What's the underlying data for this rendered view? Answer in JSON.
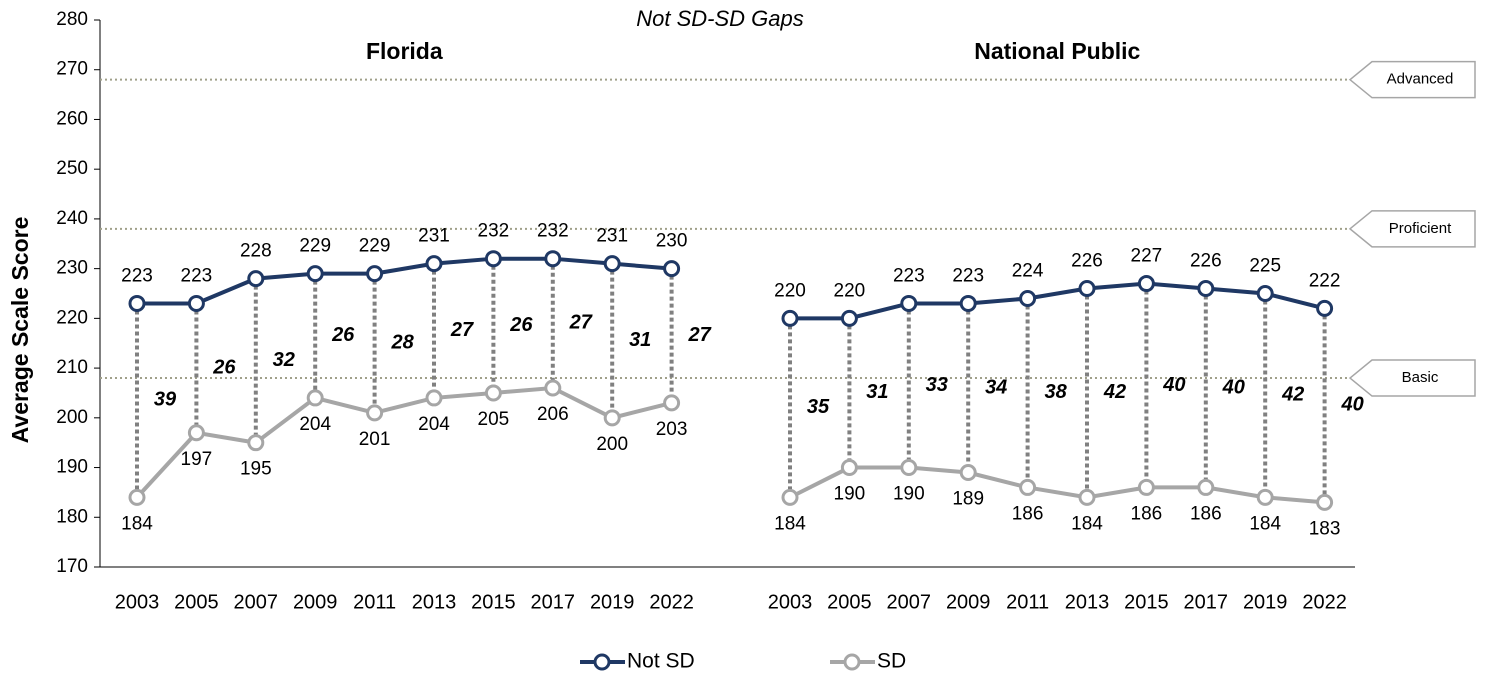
{
  "chart_data": {
    "type": "line",
    "title": "Not SD-SD Gaps",
    "y_label": "Average Scale Score",
    "ylim": [
      170,
      280
    ],
    "yticks": [
      170,
      180,
      190,
      200,
      210,
      220,
      230,
      240,
      250,
      260,
      270,
      280
    ],
    "reference_lines": [
      {
        "value": 268,
        "label": "Advanced"
      },
      {
        "value": 238,
        "label": "Proficient"
      },
      {
        "value": 208,
        "label": "Basic"
      }
    ],
    "legend": [
      {
        "name": "Not SD",
        "color": "#1f3864"
      },
      {
        "name": "SD",
        "color": "#a6a6a6"
      }
    ],
    "panels": [
      {
        "title": "Florida",
        "categories": [
          "2003",
          "2005",
          "2007",
          "2009",
          "2011",
          "2013",
          "2015",
          "2017",
          "2019",
          "2022"
        ],
        "series": [
          {
            "values": [
              223,
              223,
              228,
              229,
              229,
              231,
              232,
              232,
              231,
              230
            ]
          },
          {
            "values": [
              184,
              197,
              195,
              204,
              201,
              204,
              205,
              206,
              200,
              203
            ]
          }
        ],
        "gaps": [
          39,
          26,
          32,
          26,
          28,
          27,
          26,
          27,
          31,
          27
        ]
      },
      {
        "title": "National Public",
        "categories": [
          "2003",
          "2005",
          "2007",
          "2009",
          "2011",
          "2013",
          "2015",
          "2017",
          "2019",
          "2022"
        ],
        "series": [
          {
            "values": [
              220,
              220,
              223,
              223,
              224,
              226,
              227,
              226,
              225,
              222
            ]
          },
          {
            "values": [
              184,
              190,
              190,
              189,
              186,
              184,
              186,
              186,
              184,
              183
            ]
          }
        ],
        "gaps": [
          35,
          31,
          33,
          34,
          38,
          42,
          40,
          40,
          42,
          40
        ]
      }
    ]
  }
}
